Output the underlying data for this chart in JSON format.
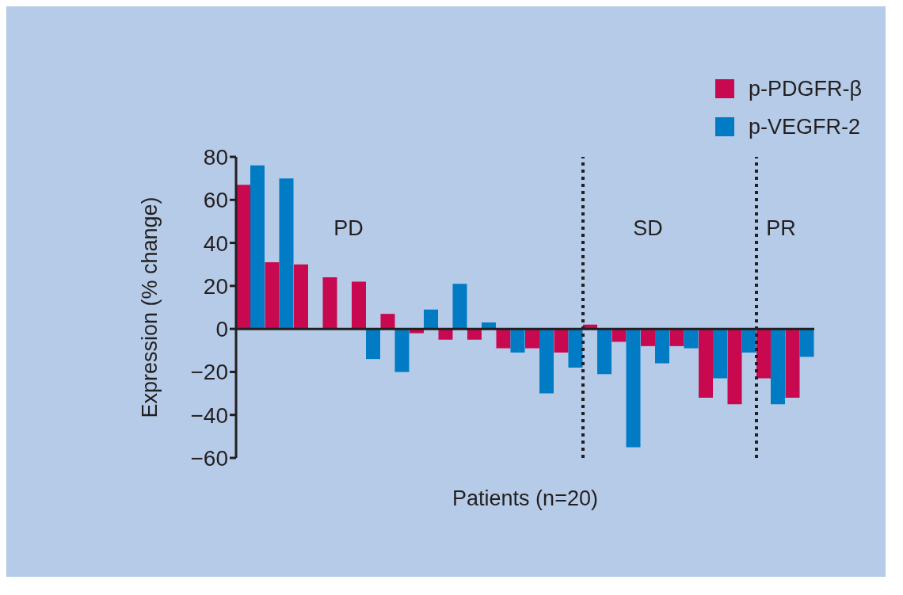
{
  "chart_data": {
    "type": "bar",
    "xlabel": "Patients (n=20)",
    "ylabel": "Expression (% change)",
    "categories": [
      null,
      null,
      null,
      null,
      null,
      null,
      null,
      null,
      null,
      null,
      null,
      null,
      null,
      null,
      null,
      null,
      null,
      null,
      null,
      null
    ],
    "series": [
      {
        "name": "p-PDGFR-β",
        "color": "#c8094f",
        "values": [
          67,
          31,
          30,
          24,
          22,
          7,
          -2,
          -5,
          -5,
          -9,
          -9,
          -11,
          2,
          -6,
          -8,
          -8,
          -32,
          -35,
          -23,
          -32
        ]
      },
      {
        "name": "p-VEGFR-2",
        "color": "#007bc4",
        "values": [
          76,
          70,
          null,
          null,
          -14,
          -20,
          9,
          21,
          3,
          -11,
          -30,
          -18,
          -21,
          -55,
          -16,
          -9,
          -23,
          -11,
          -35,
          -13
        ]
      }
    ],
    "ylim": [
      -60,
      80
    ],
    "yticks": [
      {
        "value": -60,
        "label": "−60"
      },
      {
        "value": -40,
        "label": "−40"
      },
      {
        "value": -20,
        "label": "−20"
      },
      0,
      20,
      40,
      60,
      80
    ],
    "annotations": [
      {
        "text": "PD"
      },
      {
        "text": "SD"
      },
      {
        "text": "PR"
      }
    ],
    "legend": "top right"
  }
}
